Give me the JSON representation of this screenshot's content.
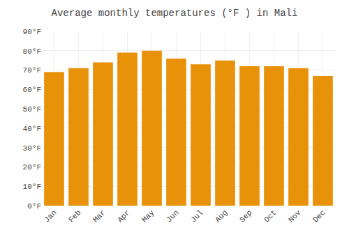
{
  "chart_data": {
    "type": "bar",
    "title": "Average monthly temperatures (°F ) in Mali",
    "categories": [
      "Jan",
      "Feb",
      "Mar",
      "Apr",
      "May",
      "Jun",
      "Jul",
      "Aug",
      "Sep",
      "Oct",
      "Nov",
      "Dec"
    ],
    "values": [
      69,
      71,
      74,
      79,
      80,
      76,
      73,
      75,
      72,
      72,
      71,
      67
    ],
    "color": "#E8920A",
    "ylim": [
      0,
      90
    ],
    "yticks": [
      {
        "value": 0,
        "label": "0°F"
      },
      {
        "value": 10,
        "label": "10°F"
      },
      {
        "value": 20,
        "label": "20°F"
      },
      {
        "value": 30,
        "label": "30°F"
      },
      {
        "value": 40,
        "label": "40°F"
      },
      {
        "value": 50,
        "label": "50°F"
      },
      {
        "value": 60,
        "label": "60°F"
      },
      {
        "value": 70,
        "label": "70°F"
      },
      {
        "value": 80,
        "label": "80°F"
      },
      {
        "value": 90,
        "label": "90°F"
      }
    ],
    "grid": true
  }
}
